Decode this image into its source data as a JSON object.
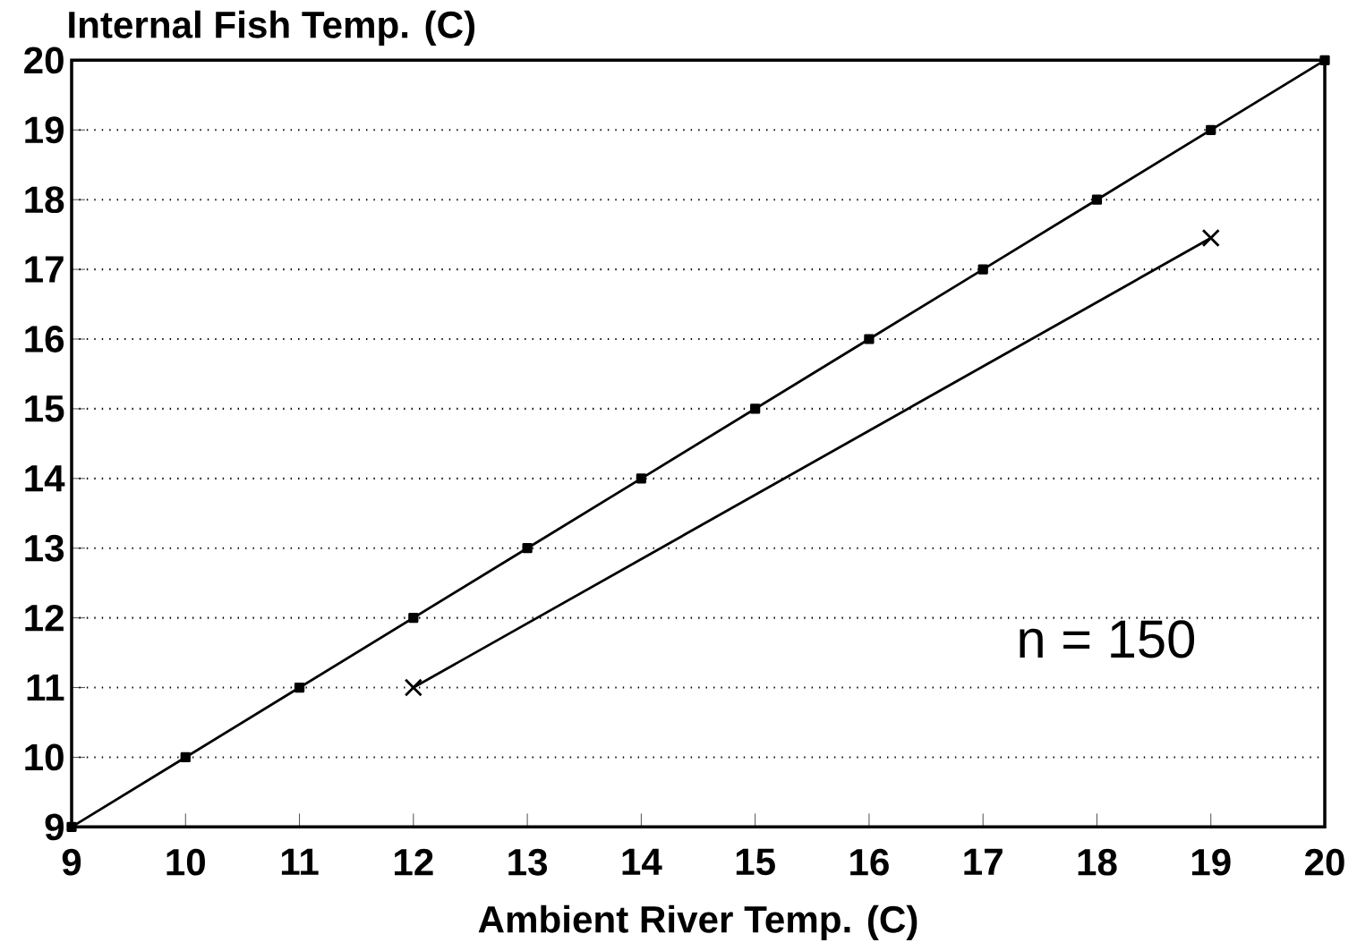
{
  "chart_data": {
    "type": "line",
    "xlabel": "Ambient River Temp. (C)",
    "ylabel": "Internal Fish Temp. (C)",
    "xlim": [
      9,
      20
    ],
    "ylim": [
      9,
      20
    ],
    "xticks": [
      9,
      10,
      11,
      12,
      13,
      14,
      15,
      16,
      17,
      18,
      19,
      20
    ],
    "yticks": [
      9,
      10,
      11,
      12,
      13,
      14,
      15,
      16,
      17,
      18,
      19,
      20
    ],
    "grid": "y",
    "line_style": "solid",
    "series": [
      {
        "color": "#000000",
        "marker": "square",
        "x": [
          9,
          10,
          11,
          12,
          13,
          14,
          15,
          16,
          17,
          18,
          19,
          20
        ],
        "values": [
          9,
          10,
          11,
          12,
          13,
          14,
          15,
          16,
          17,
          18,
          19,
          20
        ]
      },
      {
        "color": "#000000",
        "marker": "cross",
        "x": [
          12,
          19
        ],
        "values": [
          11,
          17.45
        ]
      }
    ],
    "annotations": [
      "n = 150"
    ]
  }
}
